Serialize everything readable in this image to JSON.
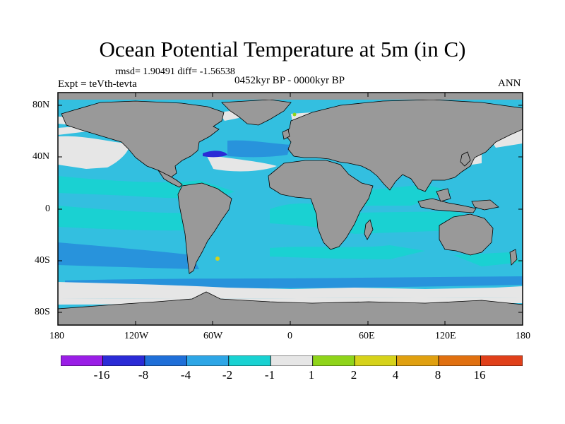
{
  "title": "Ocean Potential Temperature at 5m (in C)",
  "stats": "rmsd= 1.90491 diff= -1.56538",
  "experiment": "Expt = teVth-tevta",
  "period": "0452kyr BP - 0000kyr BP",
  "season": "ANN",
  "axes": {
    "lat_ticks": [
      "80N",
      "40N",
      "0",
      "40S",
      "80S"
    ],
    "lon_ticks": [
      "180",
      "120W",
      "60W",
      "0",
      "60E",
      "120E",
      "180"
    ]
  },
  "legend": {
    "labels": [
      "-16",
      "-8",
      "-4",
      "-2",
      "-1",
      "1",
      "2",
      "4",
      "8",
      "16"
    ],
    "colors": [
      "#9a1ee6",
      "#2b2bd6",
      "#1f6fd8",
      "#2ea6e6",
      "#19d2d2",
      "#e6e6e6",
      "#8fd41a",
      "#d6d21a",
      "#e0a010",
      "#e07010",
      "#e0401a"
    ]
  },
  "colors": {
    "land": "#999999",
    "ocean_main": "#33bfe0",
    "ocean_light": "#19d2d2",
    "ocean_dark": "#1f6fd8",
    "near_zero": "#e6e6e6"
  }
}
